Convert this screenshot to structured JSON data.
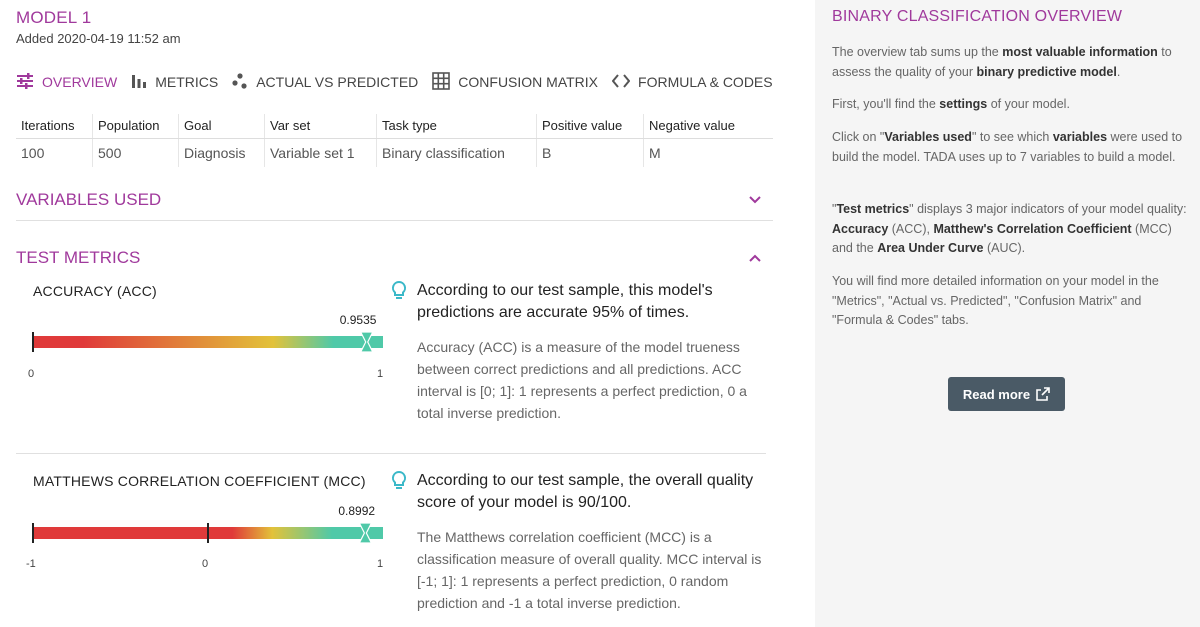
{
  "model": {
    "title": "MODEL 1",
    "added": "Added 2020-04-19 11:52 am"
  },
  "tabs": [
    {
      "label": "OVERVIEW",
      "icon": "sliders-icon",
      "active": true
    },
    {
      "label": "METRICS",
      "icon": "bar-chart-icon",
      "active": false
    },
    {
      "label": "ACTUAL VS PREDICTED",
      "icon": "scatter-dots-icon",
      "active": false
    },
    {
      "label": "CONFUSION MATRIX",
      "icon": "grid-icon",
      "active": false
    },
    {
      "label": "FORMULA & CODES",
      "icon": "code-brackets-icon",
      "active": false
    }
  ],
  "settings": {
    "headers": [
      "Iterations",
      "Population",
      "Goal",
      "Var set",
      "Task type",
      "Positive value",
      "Negative value"
    ],
    "values": [
      "100",
      "500",
      "Diagnosis",
      "Variable set 1",
      "Binary classification",
      "B",
      "M"
    ]
  },
  "sections": {
    "variables_used": "VARIABLES USED",
    "test_metrics": "TEST METRICS"
  },
  "metrics": {
    "acc": {
      "label": "ACCURACY (ACC)",
      "value_text": "0.9535",
      "value": 0.9535,
      "min": 0,
      "max": 1,
      "min_label": "0",
      "max_label": "1",
      "headline": "According to our test sample, this model's predictions are accurate 95% of times.",
      "description": "Accuracy (ACC) is a measure of the model trueness between correct predictions and all predictions. ACC interval is [0; 1]: 1 represents a perfect prediction, 0 a total inverse prediction."
    },
    "mcc": {
      "label": "MATTHEWS CORRELATION COEFFICIENT (MCC)",
      "value_text": "0.8992",
      "value": 0.8992,
      "min": -1,
      "max": 1,
      "min_label": "-1",
      "mid_label": "0",
      "max_label": "1",
      "headline": "According to our test sample, the overall quality score of your model is 90/100.",
      "description": "The Matthews correlation coefficient (MCC) is a classification measure of overall quality. MCC interval is [-1; 1]: 1 represents a perfect prediction, 0 random prediction and -1 a total inverse prediction."
    }
  },
  "aside": {
    "title": "BINARY CLASSIFICATION OVERVIEW",
    "read_more": "Read more"
  },
  "colors": {
    "accent": "#a0399c",
    "gauge_red": "#e03a3a",
    "gauge_yellow": "#e2c23a",
    "gauge_teal": "#4fc9a8",
    "button": "#4a5a66"
  }
}
